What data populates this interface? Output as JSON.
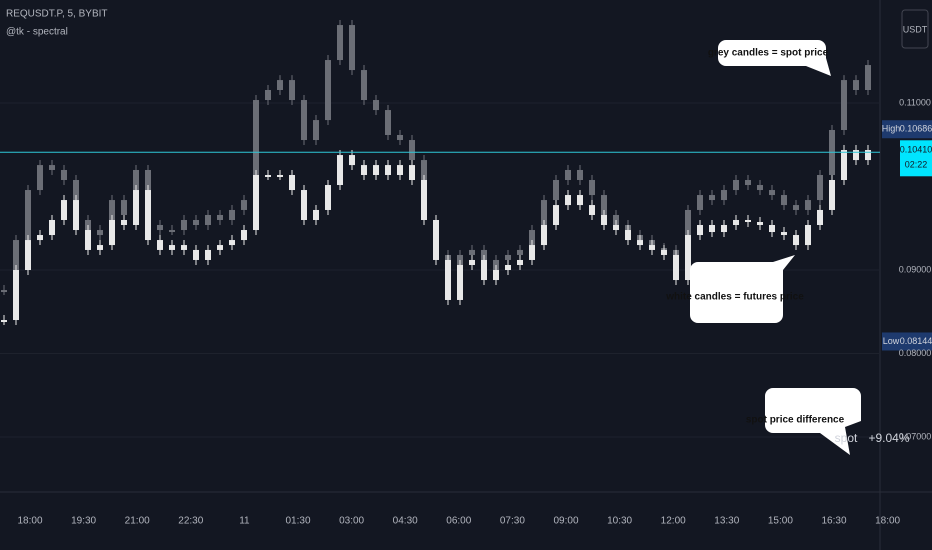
{
  "chart_data": {
    "type": "candlestick",
    "title": "REQUSDT.P, 5, BYBIT",
    "subtitle": "@tk - spectral",
    "y_axis_label": "USDT",
    "ylim": [
      0.06365,
      0.12234
    ],
    "yticks": [
      {
        "value": 0.07,
        "label": "0.07000"
      },
      {
        "value": 0.08,
        "label": "0.08000"
      },
      {
        "value": 0.09,
        "label": "0.09000"
      },
      {
        "value": 0.11,
        "label": "0.11000"
      }
    ],
    "grid": true,
    "time_labels": [
      "18:00",
      "19:30",
      "21:00",
      "22:30",
      "11",
      "01:30",
      "03:00",
      "04:30",
      "06:00",
      "07:30",
      "09:00",
      "10:30",
      "12:00",
      "13:30",
      "15:00",
      "16:30",
      "18:00"
    ],
    "series": [
      {
        "name": "spot",
        "color": "#6b6e76",
        "values": [
          0.0876,
          0.09359,
          0.09958,
          0.10257,
          0.10198,
          0.10078,
          0.09599,
          0.09419,
          0.09479,
          0.09838,
          0.09659,
          0.10198,
          0.09539,
          0.09479,
          0.09479,
          0.09599,
          0.09539,
          0.09659,
          0.09599,
          0.09719,
          0.09838,
          0.11036,
          0.11156,
          0.11275,
          0.11036,
          0.10557,
          0.10796,
          0.11515,
          0.11934,
          0.11395,
          0.11036,
          0.10916,
          0.10617,
          0.10557,
          0.10317,
          0.09599,
          0.0918,
          0.0876,
          0.0918,
          0.0924,
          0.09,
          0.0912,
          0.0918,
          0.0924,
          0.09479,
          0.09838,
          0.10078,
          0.10198,
          0.10078,
          0.09898,
          0.09659,
          0.09539,
          0.09419,
          0.09359,
          0.09263,
          0.0924,
          0.0894,
          0.09719,
          0.09898,
          0.09838,
          0.09958,
          0.10078,
          0.10018,
          0.09958,
          0.09898,
          0.09778,
          0.09719,
          0.09838,
          0.10138,
          0.10677,
          0.11275,
          0.11156,
          0.11455
        ]
      },
      {
        "name": "futures",
        "color": "#e8e8e8",
        "values": [
          0.08401,
          0.09,
          0.09359,
          0.09419,
          0.09599,
          0.09838,
          0.09479,
          0.0924,
          0.09299,
          0.09599,
          0.09539,
          0.09958,
          0.09359,
          0.0924,
          0.09299,
          0.0924,
          0.0912,
          0.0924,
          0.09299,
          0.09359,
          0.09479,
          0.10138,
          0.10138,
          0.10138,
          0.09958,
          0.09599,
          0.09719,
          0.10018,
          0.10377,
          0.10257,
          0.10138,
          0.10257,
          0.10138,
          0.10257,
          0.10078,
          0.09599,
          0.0912,
          0.08641,
          0.0906,
          0.0912,
          0.0888,
          0.09,
          0.0906,
          0.0912,
          0.09299,
          0.09539,
          0.09778,
          0.09898,
          0.09778,
          0.09659,
          0.09539,
          0.09479,
          0.09359,
          0.09299,
          0.0924,
          0.0918,
          0.0888,
          0.09419,
          0.09539,
          0.09455,
          0.09539,
          0.09599,
          0.09575,
          0.09539,
          0.09455,
          0.09419,
          0.09299,
          0.09539,
          0.09719,
          0.10078,
          0.10437,
          0.10317,
          0.10437
        ]
      }
    ],
    "price_labels": [
      {
        "name": "High",
        "value": 0.10686,
        "label": "0.10686",
        "color": "#1e3a6e"
      },
      {
        "value": 0.1041,
        "label": "0.10410",
        "countdown": "02:22",
        "color": "#00e5ff"
      },
      {
        "name": "Low",
        "value": 0.08144,
        "label": "0.08144",
        "color": "#1e3a6e"
      }
    ],
    "spot_difference": {
      "name": "spot",
      "value": 9.04,
      "label": "+9.04%"
    },
    "annotations": [
      "grey candles = spot price",
      "white candles = futures price",
      "spot price difference"
    ]
  }
}
